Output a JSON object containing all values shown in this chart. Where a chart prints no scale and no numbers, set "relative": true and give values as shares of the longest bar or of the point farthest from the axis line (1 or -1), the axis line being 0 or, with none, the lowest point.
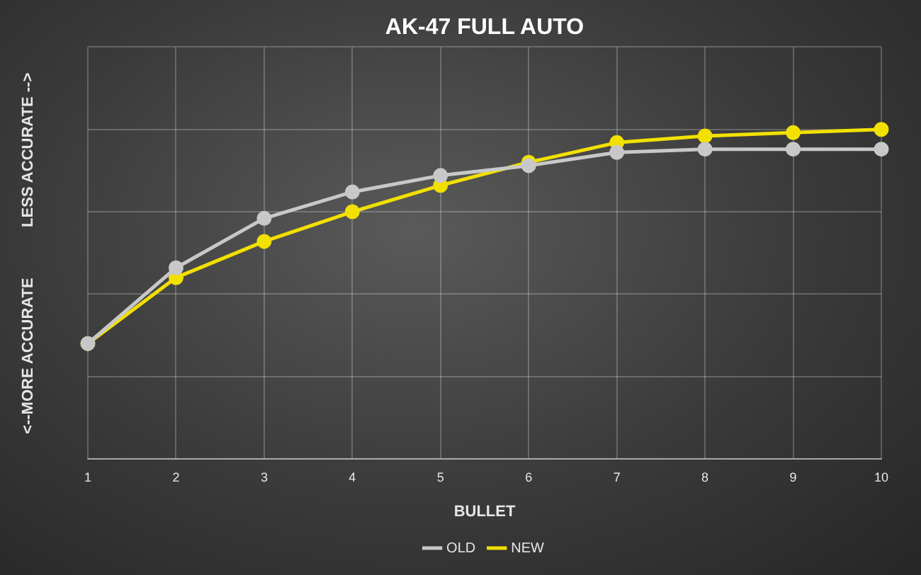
{
  "chart_data": {
    "type": "line",
    "title": "AK-47 FULL AUTO",
    "xlabel": "BULLET",
    "relative": true,
    "annotations": [
      "<--MORE ACCURATE",
      "LESS ACCURATE -->"
    ],
    "categories": [
      "1",
      "2",
      "3",
      "4",
      "5",
      "6",
      "7",
      "8",
      "9",
      "10"
    ],
    "series": [
      {
        "name": "OLD",
        "color": "#c8c8c8",
        "values": [
          0.35,
          0.58,
          0.73,
          0.81,
          0.86,
          0.89,
          0.93,
          0.94,
          0.94,
          0.94
        ]
      },
      {
        "name": "NEW",
        "color": "#f2e000",
        "values": [
          0.35,
          0.55,
          0.66,
          0.75,
          0.83,
          0.9,
          0.96,
          0.98,
          0.99,
          1
        ]
      }
    ],
    "grid": true,
    "legend": "bottom",
    "marker": "circle",
    "line_style": "solid"
  }
}
